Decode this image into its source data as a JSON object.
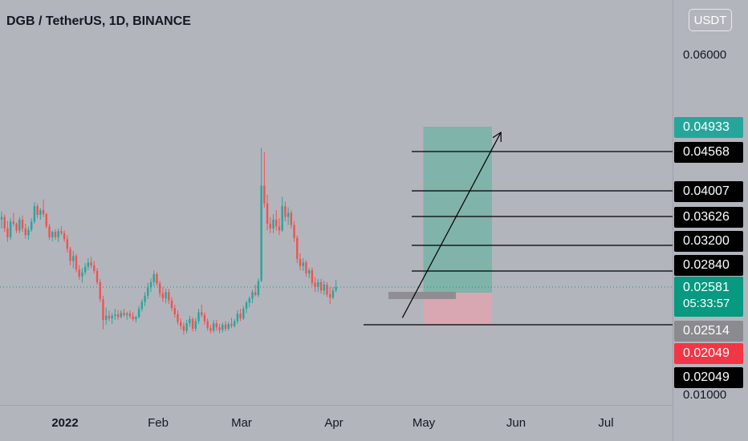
{
  "header": {
    "title": "DGB / TetherUS, 1D, BINANCE",
    "currency_button": "USDT"
  },
  "colors": {
    "up": "#26a69a",
    "down": "#ef5350",
    "target_zone": "#80b3a9",
    "stop_zone": "#d8a7b1",
    "background": "#b3b5bd",
    "tp_tag": "#26a69a",
    "level_tag": "#000000",
    "entry_tag": "#8a8a8f",
    "stop_tag": "#f23645"
  },
  "price_tag": {
    "price": "0.02581",
    "countdown": "05:33:57"
  },
  "chart_data": {
    "type": "candlestick",
    "x_ticks": [
      "2022",
      "Feb",
      "Mar",
      "Apr",
      "May",
      "Jun",
      "Jul"
    ],
    "y_ticks": [
      "0.06000",
      "0.01000"
    ],
    "current_price": 0.02581,
    "levels": [
      {
        "label": "0.04933",
        "value": 0.04933,
        "kind": "target"
      },
      {
        "label": "0.04568",
        "value": 0.04568,
        "kind": "level"
      },
      {
        "label": "0.04007",
        "value": 0.04007,
        "kind": "level"
      },
      {
        "label": "0.03626",
        "value": 0.03626,
        "kind": "level"
      },
      {
        "label": "0.03200",
        "value": 0.032,
        "kind": "level"
      },
      {
        "label": "0.02840",
        "value": 0.0284,
        "kind": "level"
      },
      {
        "label": "0.02514",
        "value": 0.02514,
        "kind": "entry"
      },
      {
        "label": "0.02049",
        "value": 0.02049,
        "kind": "stop"
      },
      {
        "label": "0.02049",
        "value": 0.02049,
        "kind": "level"
      }
    ],
    "position": {
      "entry": 0.02514,
      "target": 0.04933,
      "stop": 0.02049,
      "start_date": "2022-05-01",
      "end_date": "2022-05-24"
    },
    "arrow": {
      "from_date": "2022-04-24",
      "from": 0.0215,
      "to_date": "2022-05-27",
      "to": 0.0485
    },
    "candles": [
      [
        0.0358,
        0.037,
        0.0345,
        0.0362
      ],
      [
        0.0362,
        0.0366,
        0.034,
        0.0345
      ],
      [
        0.0345,
        0.0356,
        0.0325,
        0.0332
      ],
      [
        0.0332,
        0.036,
        0.0328,
        0.0355
      ],
      [
        0.0355,
        0.0368,
        0.0348,
        0.0352
      ],
      [
        0.0352,
        0.0354,
        0.0338,
        0.0342
      ],
      [
        0.0342,
        0.0362,
        0.0338,
        0.0358
      ],
      [
        0.0358,
        0.0364,
        0.034,
        0.0345
      ],
      [
        0.0345,
        0.0352,
        0.033,
        0.0335
      ],
      [
        0.0335,
        0.0348,
        0.0328,
        0.0343
      ],
      [
        0.0343,
        0.036,
        0.034,
        0.0355
      ],
      [
        0.0355,
        0.0384,
        0.0352,
        0.0378
      ],
      [
        0.0378,
        0.0382,
        0.036,
        0.0365
      ],
      [
        0.0365,
        0.0375,
        0.0358,
        0.0372
      ],
      [
        0.0372,
        0.0388,
        0.0362,
        0.0366
      ],
      [
        0.0366,
        0.0368,
        0.0345,
        0.0348
      ],
      [
        0.0348,
        0.0352,
        0.0328,
        0.0332
      ],
      [
        0.0332,
        0.0342,
        0.0326,
        0.034
      ],
      [
        0.034,
        0.0344,
        0.0328,
        0.0332
      ],
      [
        0.0332,
        0.0345,
        0.0325,
        0.0341
      ],
      [
        0.0341,
        0.0348,
        0.0335,
        0.0338
      ],
      [
        0.0338,
        0.0342,
        0.0325,
        0.0329
      ],
      [
        0.0329,
        0.0335,
        0.031,
        0.0315
      ],
      [
        0.0315,
        0.0318,
        0.0292,
        0.0298
      ],
      [
        0.0298,
        0.0312,
        0.0288,
        0.0305
      ],
      [
        0.0305,
        0.0308,
        0.0282,
        0.0286
      ],
      [
        0.0286,
        0.0292,
        0.027,
        0.0275
      ],
      [
        0.0275,
        0.0288,
        0.0265,
        0.0282
      ],
      [
        0.0282,
        0.0295,
        0.0278,
        0.029
      ],
      [
        0.029,
        0.0302,
        0.0285,
        0.0296
      ],
      [
        0.0296,
        0.0304,
        0.0288,
        0.0292
      ],
      [
        0.0292,
        0.0298,
        0.028,
        0.0284
      ],
      [
        0.0284,
        0.0288,
        0.0262,
        0.0266
      ],
      [
        0.0266,
        0.0271,
        0.0238,
        0.0242
      ],
      [
        0.0242,
        0.0247,
        0.0198,
        0.0212
      ],
      [
        0.0212,
        0.023,
        0.0205,
        0.0218
      ],
      [
        0.0218,
        0.0225,
        0.021,
        0.0214
      ],
      [
        0.0214,
        0.0222,
        0.0206,
        0.0218
      ],
      [
        0.0218,
        0.0228,
        0.0212,
        0.022
      ],
      [
        0.022,
        0.0226,
        0.0212,
        0.0216
      ],
      [
        0.0216,
        0.0226,
        0.0214,
        0.0222
      ],
      [
        0.0222,
        0.0228,
        0.0216,
        0.0219
      ],
      [
        0.0219,
        0.0224,
        0.0212,
        0.0221
      ],
      [
        0.0221,
        0.0226,
        0.0214,
        0.0217
      ],
      [
        0.0217,
        0.0223,
        0.021,
        0.0213
      ],
      [
        0.0213,
        0.0218,
        0.0208,
        0.0216
      ],
      [
        0.0216,
        0.0232,
        0.0214,
        0.0228
      ],
      [
        0.0228,
        0.0242,
        0.0224,
        0.0238
      ],
      [
        0.0238,
        0.0252,
        0.0232,
        0.0247
      ],
      [
        0.0247,
        0.0265,
        0.0242,
        0.0258
      ],
      [
        0.0258,
        0.0272,
        0.0252,
        0.0266
      ],
      [
        0.0266,
        0.0285,
        0.026,
        0.0279
      ],
      [
        0.0279,
        0.0282,
        0.026,
        0.0264
      ],
      [
        0.0264,
        0.0268,
        0.0245,
        0.025
      ],
      [
        0.025,
        0.0258,
        0.0238,
        0.0243
      ],
      [
        0.0243,
        0.0256,
        0.0236,
        0.0252
      ],
      [
        0.0252,
        0.0256,
        0.0235,
        0.024
      ],
      [
        0.024,
        0.0245,
        0.0225,
        0.0229
      ],
      [
        0.0229,
        0.0234,
        0.0215,
        0.022
      ],
      [
        0.022,
        0.0226,
        0.0205,
        0.0209
      ],
      [
        0.0209,
        0.0214,
        0.0198,
        0.0203
      ],
      [
        0.0203,
        0.0208,
        0.019,
        0.0196
      ],
      [
        0.0196,
        0.0212,
        0.0192,
        0.0207
      ],
      [
        0.0207,
        0.0218,
        0.0202,
        0.0213
      ],
      [
        0.0213,
        0.0216,
        0.0195,
        0.0199
      ],
      [
        0.0199,
        0.0215,
        0.0195,
        0.021
      ],
      [
        0.021,
        0.0228,
        0.0206,
        0.0223
      ],
      [
        0.0223,
        0.0234,
        0.0216,
        0.0219
      ],
      [
        0.0219,
        0.0223,
        0.0205,
        0.021
      ],
      [
        0.021,
        0.0214,
        0.0196,
        0.02
      ],
      [
        0.02,
        0.0205,
        0.0192,
        0.0196
      ],
      [
        0.0196,
        0.0212,
        0.0193,
        0.0207
      ],
      [
        0.0207,
        0.0212,
        0.0196,
        0.0201
      ],
      [
        0.0201,
        0.0206,
        0.0192,
        0.0197
      ],
      [
        0.0197,
        0.0208,
        0.0193,
        0.0205
      ],
      [
        0.0205,
        0.021,
        0.0195,
        0.0199
      ],
      [
        0.0199,
        0.0209,
        0.0196,
        0.0206
      ],
      [
        0.0206,
        0.0215,
        0.02,
        0.0203
      ],
      [
        0.0203,
        0.0213,
        0.0201,
        0.021
      ],
      [
        0.021,
        0.0226,
        0.0206,
        0.0221
      ],
      [
        0.0221,
        0.0228,
        0.021,
        0.0214
      ],
      [
        0.0214,
        0.0232,
        0.0212,
        0.0228
      ],
      [
        0.0228,
        0.024,
        0.0222,
        0.0237
      ],
      [
        0.0237,
        0.0246,
        0.023,
        0.0243
      ],
      [
        0.0243,
        0.0255,
        0.0236,
        0.0252
      ],
      [
        0.0252,
        0.0262,
        0.0246,
        0.0248
      ],
      [
        0.0248,
        0.0272,
        0.0245,
        0.0268
      ],
      [
        0.0268,
        0.0462,
        0.0266,
        0.0408
      ],
      [
        0.0408,
        0.0456,
        0.0376,
        0.0382
      ],
      [
        0.0382,
        0.0395,
        0.0342,
        0.0352
      ],
      [
        0.0352,
        0.0362,
        0.0338,
        0.0345
      ],
      [
        0.0345,
        0.0366,
        0.0338,
        0.0358
      ],
      [
        0.0358,
        0.0372,
        0.0342,
        0.0348
      ],
      [
        0.0348,
        0.036,
        0.0335,
        0.0342
      ],
      [
        0.0342,
        0.0392,
        0.034,
        0.0378
      ],
      [
        0.0378,
        0.0385,
        0.0355,
        0.0362
      ],
      [
        0.0362,
        0.0376,
        0.035,
        0.0368
      ],
      [
        0.0368,
        0.0372,
        0.0345,
        0.035
      ],
      [
        0.035,
        0.0356,
        0.0325,
        0.0331
      ],
      [
        0.0331,
        0.0335,
        0.0295,
        0.0301
      ],
      [
        0.0301,
        0.0309,
        0.0285,
        0.0291
      ],
      [
        0.0291,
        0.0302,
        0.0284,
        0.0296
      ],
      [
        0.0296,
        0.0299,
        0.0275,
        0.028
      ],
      [
        0.028,
        0.0288,
        0.0272,
        0.0285
      ],
      [
        0.0285,
        0.0289,
        0.026,
        0.0265
      ],
      [
        0.0265,
        0.0274,
        0.0252,
        0.0258
      ],
      [
        0.0258,
        0.0271,
        0.0252,
        0.0266
      ],
      [
        0.0266,
        0.0271,
        0.025,
        0.0254
      ],
      [
        0.0254,
        0.0268,
        0.0248,
        0.0262
      ],
      [
        0.0262,
        0.0266,
        0.0245,
        0.0249
      ],
      [
        0.0249,
        0.0258,
        0.0235,
        0.0244
      ],
      [
        0.0244,
        0.0258,
        0.0242,
        0.0254
      ],
      [
        0.0254,
        0.027,
        0.0252,
        0.0258
      ]
    ]
  }
}
